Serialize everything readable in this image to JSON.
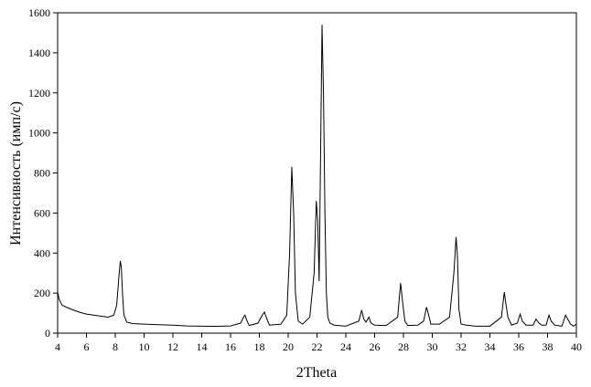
{
  "chart_data": {
    "type": "line",
    "title": "",
    "xlabel": "2Theta",
    "ylabel": "Интенсивность (имп/с)",
    "xlim": [
      4,
      40
    ],
    "ylim": [
      0,
      1600
    ],
    "xticks": [
      4,
      6,
      8,
      10,
      12,
      14,
      16,
      18,
      20,
      22,
      24,
      26,
      28,
      30,
      32,
      34,
      36,
      38,
      40
    ],
    "yticks": [
      0,
      200,
      400,
      600,
      800,
      1000,
      1200,
      1400,
      1600
    ],
    "grid": false,
    "line_color": "#000000",
    "series": [
      {
        "x": [
          4.0,
          4.1,
          4.3,
          4.6,
          5.0,
          5.5,
          6.0,
          6.5,
          7.0,
          7.5,
          7.9,
          8.1,
          8.25,
          8.35,
          8.42,
          8.5,
          8.6,
          8.8,
          9.2,
          10.0,
          11.0,
          12.0,
          13.0,
          14.0,
          15.0,
          16.0,
          16.7,
          16.9,
          17.0,
          17.15,
          17.3,
          17.9,
          18.2,
          18.35,
          18.5,
          18.7,
          19.5,
          19.9,
          20.1,
          20.25,
          20.38,
          20.5,
          20.7,
          21.0,
          21.5,
          21.8,
          21.95,
          22.05,
          22.15,
          22.25,
          22.35,
          22.45,
          22.55,
          22.65,
          22.75,
          22.9,
          23.2,
          24.0,
          24.9,
          25.1,
          25.25,
          25.4,
          25.6,
          25.75,
          26.0,
          26.8,
          27.6,
          27.8,
          27.95,
          28.1,
          28.3,
          29.0,
          29.4,
          29.6,
          29.75,
          29.9,
          30.5,
          31.2,
          31.5,
          31.65,
          31.75,
          31.85,
          32.0,
          32.4,
          33.0,
          34.0,
          34.8,
          35.0,
          35.1,
          35.25,
          35.5,
          35.9,
          36.1,
          36.25,
          36.5,
          37.0,
          37.2,
          37.4,
          37.6,
          37.9,
          38.1,
          38.25,
          38.5,
          39.0,
          39.25,
          39.4,
          39.6,
          39.8,
          40.0
        ],
        "y": [
          205,
          170,
          140,
          130,
          118,
          105,
          95,
          90,
          85,
          80,
          90,
          140,
          280,
          360,
          330,
          200,
          90,
          55,
          48,
          45,
          42,
          40,
          36,
          35,
          34,
          36,
          50,
          80,
          90,
          60,
          38,
          50,
          90,
          105,
          75,
          40,
          45,
          90,
          400,
          830,
          600,
          200,
          60,
          45,
          80,
          300,
          660,
          560,
          260,
          900,
          1540,
          1200,
          600,
          200,
          80,
          50,
          40,
          35,
          60,
          115,
          70,
          55,
          80,
          50,
          40,
          38,
          80,
          250,
          150,
          60,
          38,
          40,
          60,
          130,
          90,
          45,
          45,
          80,
          300,
          480,
          380,
          120,
          45,
          40,
          35,
          35,
          80,
          205,
          150,
          80,
          40,
          50,
          95,
          60,
          40,
          40,
          70,
          50,
          40,
          40,
          90,
          60,
          40,
          35,
          90,
          70,
          45,
          35,
          45
        ]
      }
    ]
  }
}
